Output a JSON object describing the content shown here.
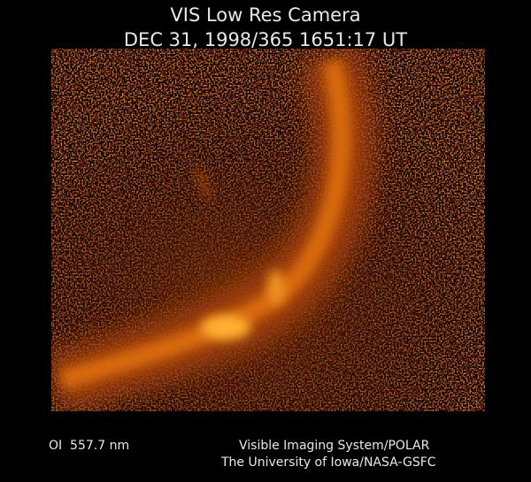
{
  "header": {
    "title": "VIS Low Res Camera",
    "timestamp": "DEC 31, 1998/365 1651:17 UT"
  },
  "footer": {
    "filter": "OI  557.7 nm",
    "instrument": "Visible Imaging System/POLAR",
    "credit": "The University of Iowa/NASA-GSFC"
  }
}
